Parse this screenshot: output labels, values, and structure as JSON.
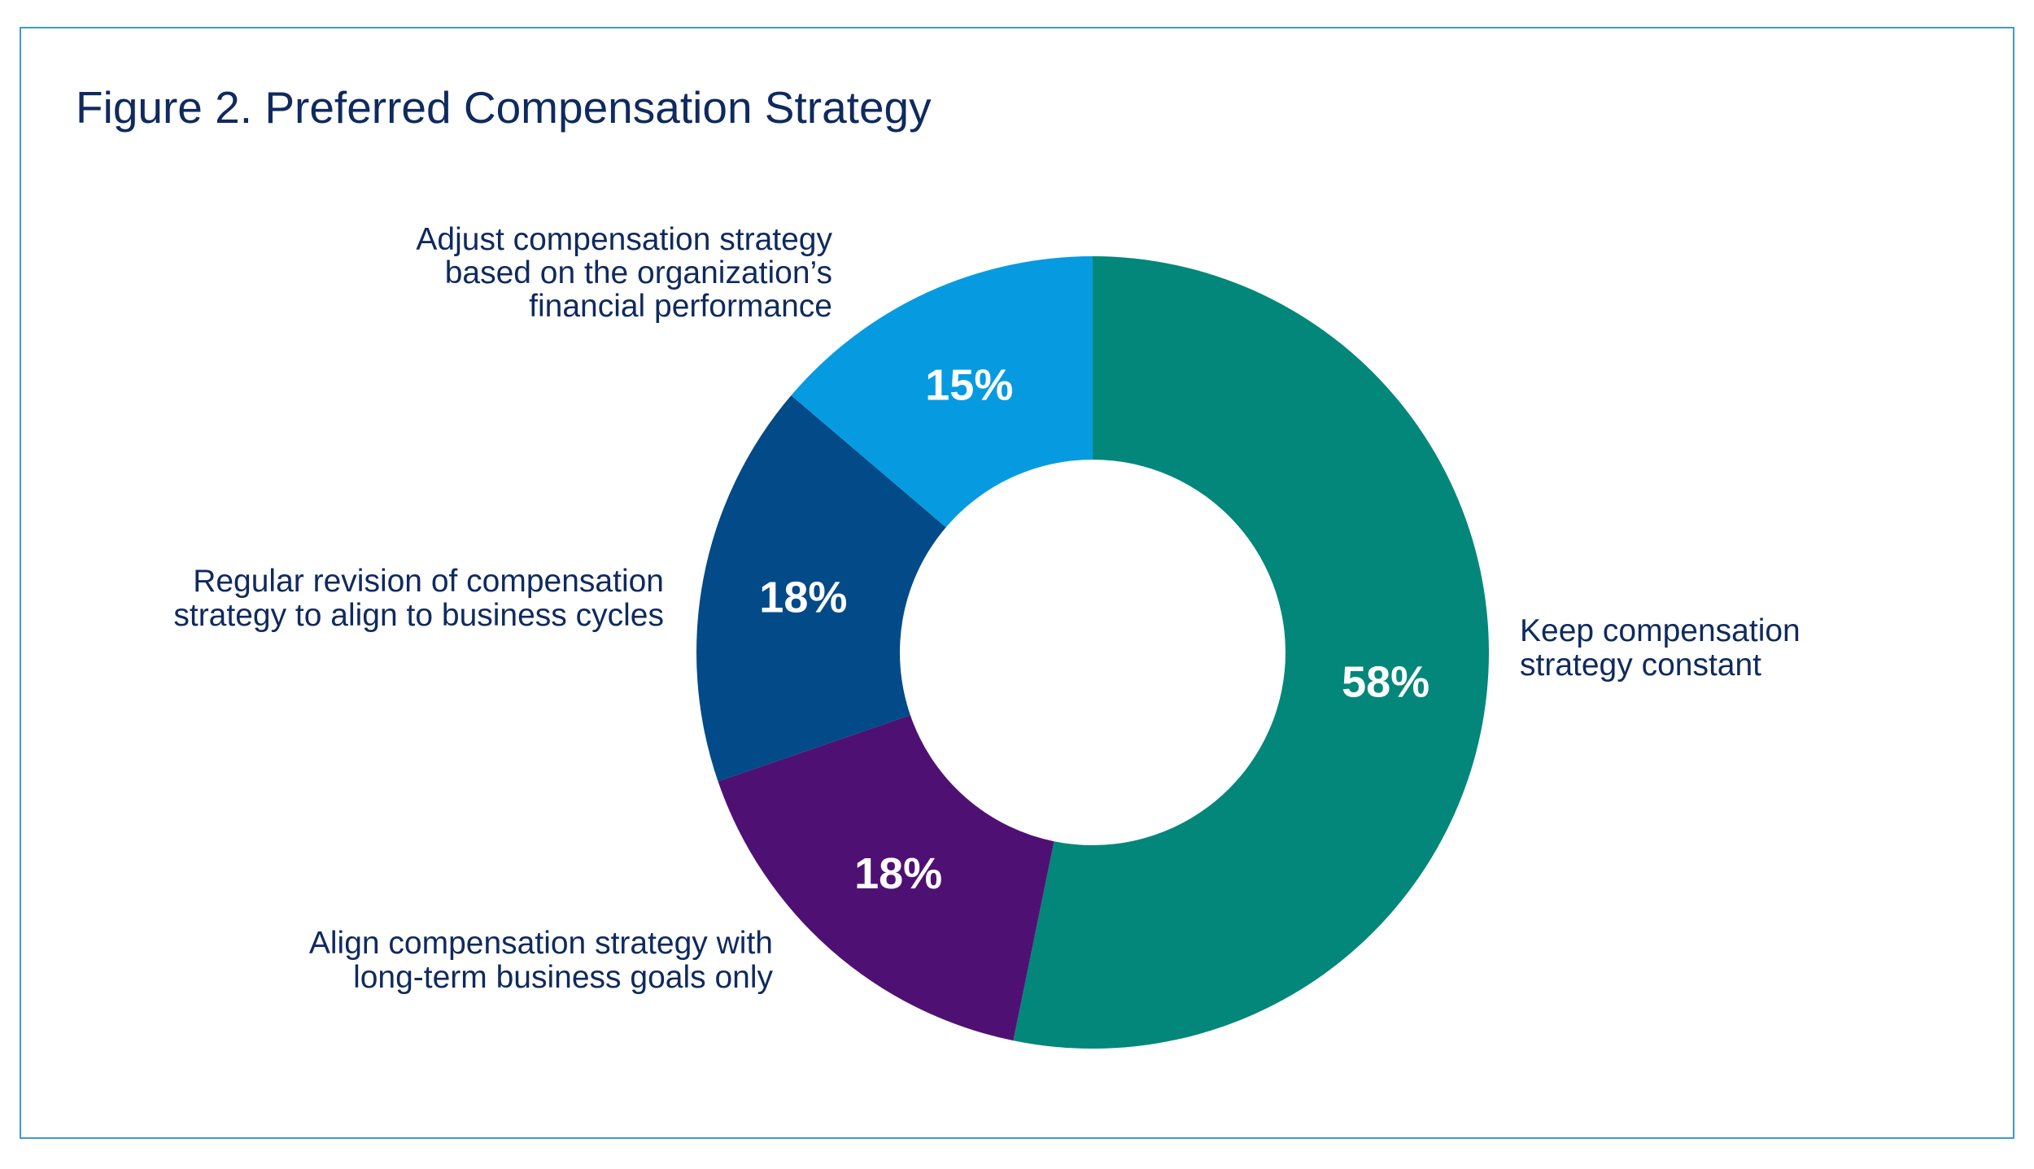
{
  "chart_data": {
    "type": "pie",
    "donut": true,
    "title": "Figure 2. Preferred Compensation Strategy",
    "slices": [
      {
        "label_lines": [
          "Keep compensation",
          "strategy constant"
        ],
        "value": 58,
        "display": "58%",
        "color": "#02877a",
        "label_side": "right"
      },
      {
        "label_lines": [
          "Align compensation strategy with",
          "long-term business goals only"
        ],
        "value": 18,
        "display": "18%",
        "color": "#4e1173",
        "label_side": "left"
      },
      {
        "label_lines": [
          "Regular revision of compensation",
          "strategy to align to business cycles"
        ],
        "value": 18,
        "display": "18%",
        "color": "#024a88",
        "label_side": "left"
      },
      {
        "label_lines": [
          "Adjust compensation strategy",
          "based on the organization’s",
          "financial performance"
        ],
        "value": 15,
        "display": "15%",
        "color": "#069be0",
        "label_side": "left"
      }
    ],
    "start": "12 o'clock",
    "direction": "clockwise",
    "legend": "none (direct labels)"
  },
  "colors": {
    "frame_border": "#3d9ad6",
    "title_text": "#0f2a5e"
  }
}
